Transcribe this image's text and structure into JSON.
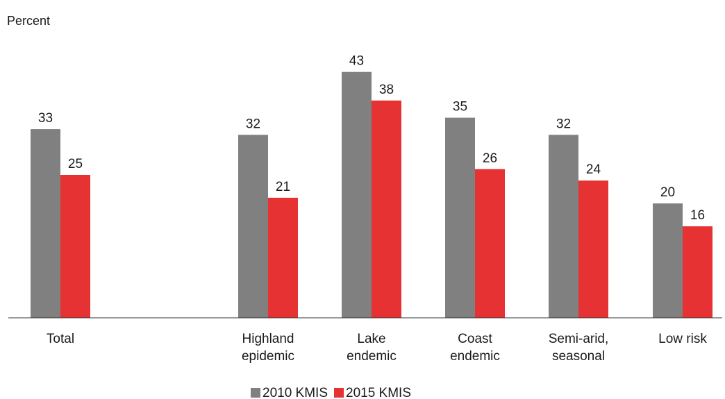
{
  "chart_data": {
    "type": "bar",
    "ylabel": "Percent",
    "ylim": [
      0,
      50
    ],
    "grid": false,
    "legend_position": "bottom-center",
    "categories": [
      [
        "Total"
      ],
      [
        "Highland",
        "epidemic"
      ],
      [
        "Lake",
        "endemic"
      ],
      [
        "Coast",
        "endemic"
      ],
      [
        "Semi-arid,",
        "seasonal"
      ],
      [
        "Low risk"
      ]
    ],
    "series": [
      {
        "name": "2010 KMIS",
        "color": "#808080",
        "values": [
          33,
          32,
          43,
          35,
          32,
          20
        ]
      },
      {
        "name": "2015 KMIS",
        "color": "#e63232",
        "values": [
          25,
          21,
          38,
          26,
          24,
          16
        ]
      }
    ]
  }
}
